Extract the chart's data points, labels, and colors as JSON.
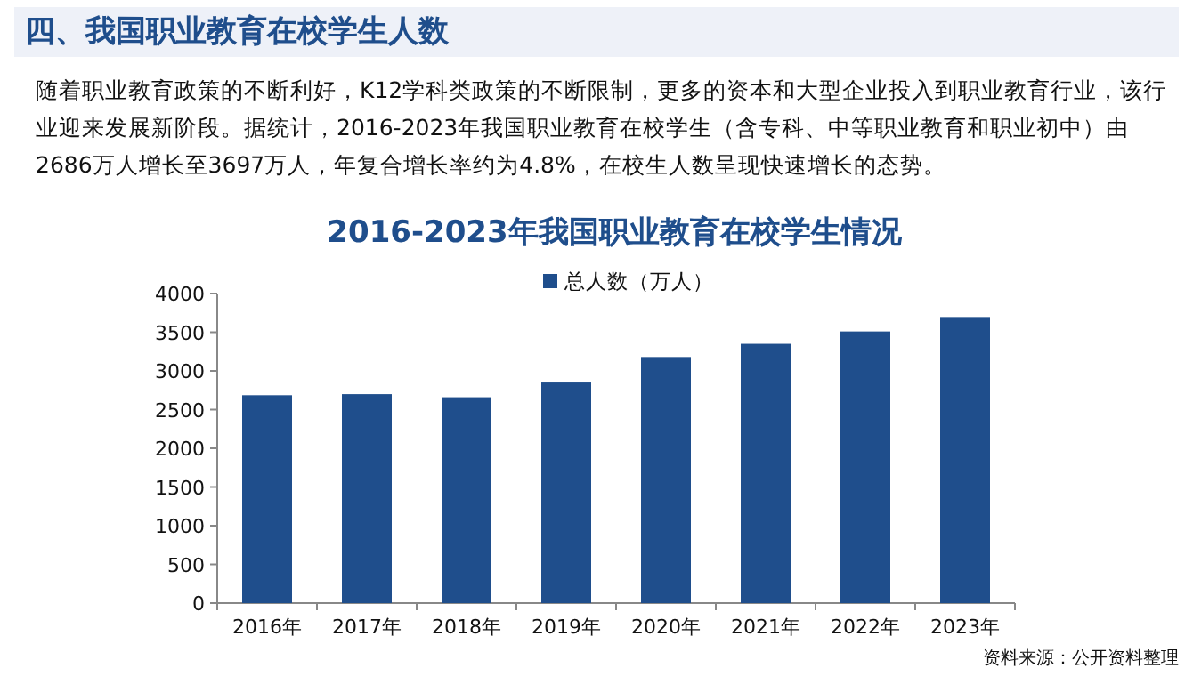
{
  "chart_data": {
    "type": "bar",
    "title": "2016-2023年我国职业教育在校学生情况",
    "categories": [
      "2016年",
      "2017年",
      "2018年",
      "2019年",
      "2020年",
      "2021年",
      "2022年",
      "2023年"
    ],
    "series": [
      {
        "name": "总人数（万人）",
        "color": "#1f4e8c",
        "values": [
          2686,
          2700,
          2660,
          2850,
          3180,
          3350,
          3510,
          3697
        ]
      }
    ],
    "ylim": [
      0,
      4000
    ],
    "yticks": [
      0,
      500,
      1000,
      1500,
      2000,
      2500,
      3000,
      3500,
      4000
    ],
    "grid": false,
    "legend": "top",
    "annotations": [
      "四、我国职业教育在校学生人数",
      "随着职业教育政策的不断利好，K12学科类政策的不断限制，更多的资本和大型企业投入到职业教育行业，该行业迎来发展新阶段。据统计，2016-2023年我国职业教育在校学生（含专科、中等职业教育和职业初中）由2686万人增长至3697万人，年复合增长率约为4.8%，在校生人数呈现快速增长的态势。",
      "资料来源：公开资料整理"
    ]
  }
}
